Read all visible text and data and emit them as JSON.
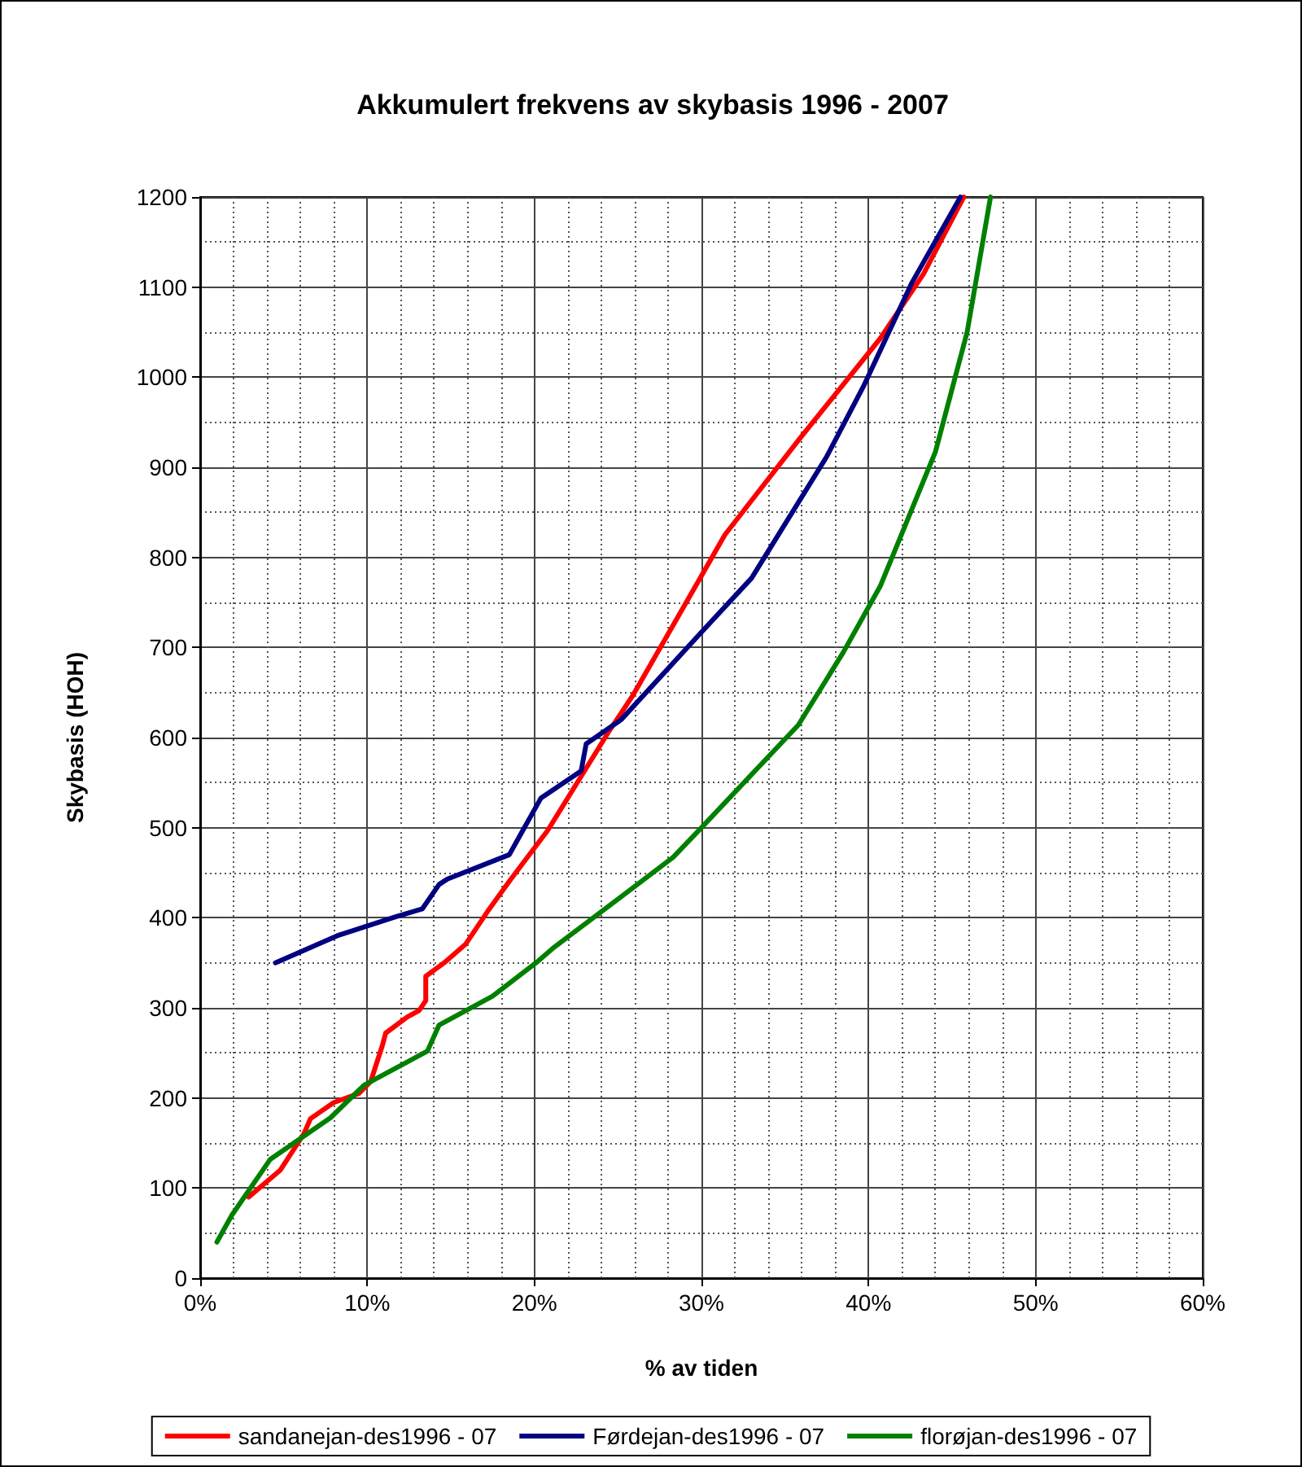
{
  "chart_data": {
    "type": "line",
    "title": "Akkumulert frekvens av skybasis 1996 - 2007",
    "xlabel": "% av tiden",
    "ylabel": "Skybasis (HOH)",
    "xlim": [
      0,
      60
    ],
    "xticks": [
      {
        "value": 0,
        "label": "0%"
      },
      {
        "value": 10,
        "label": "10%"
      },
      {
        "value": 20,
        "label": "20%"
      },
      {
        "value": 30,
        "label": "30%"
      },
      {
        "value": 40,
        "label": "40%"
      },
      {
        "value": 50,
        "label": "50%"
      },
      {
        "value": 60,
        "label": "60%"
      }
    ],
    "ylim": [
      0,
      1200
    ],
    "yticks": [
      0,
      100,
      200,
      300,
      400,
      500,
      600,
      700,
      800,
      900,
      1000,
      1100,
      1200
    ],
    "grid": true,
    "legend": "bottom",
    "marker": "none",
    "line_style": "solid",
    "series": [
      {
        "name": "sandanejan-des1996 - 07",
        "color": "#ff0000",
        "x": [
          2.9,
          4.8,
          6.2,
          6.6,
          8,
          9.5,
          10.2,
          10.9,
          11.1,
          12.4,
          13.1,
          13.5,
          13.5,
          14.6,
          15.9,
          17.2,
          18.6,
          20.8,
          24.4,
          25.9,
          29.8,
          31.4,
          35.8,
          40.7,
          43.3,
          45.7
        ],
        "values": [
          90,
          120,
          160,
          177,
          195,
          205,
          218,
          258,
          272,
          290,
          297,
          308,
          335,
          350,
          371,
          407,
          443,
          497,
          605,
          647,
          773,
          825,
          930,
          1043,
          1115,
          1200
        ]
      },
      {
        "name": "Førdejan-des1996 - 07",
        "color": "#000080",
        "x": [
          4.5,
          8.2,
          11.7,
          13.3,
          14.3,
          14.8,
          18.5,
          19.4,
          20.4,
          22.8,
          23.1,
          25.2,
          29.8,
          33,
          37.5,
          39.7,
          42.6,
          45.5
        ],
        "values": [
          350,
          380,
          401,
          410,
          437,
          443,
          470,
          500,
          533,
          563,
          593,
          620,
          713,
          777,
          912,
          990,
          1105,
          1200
        ]
      },
      {
        "name": "florøjan-des1996 - 07",
        "color": "#008000",
        "x": [
          1,
          1.9,
          4.2,
          7.8,
          9.8,
          10.7,
          13.6,
          14.3,
          17.5,
          20.1,
          21.1,
          28.3,
          30,
          35.8,
          38.5,
          40.7,
          44,
          45.9,
          47.3
        ],
        "values": [
          40,
          70,
          132,
          178,
          214,
          223,
          252,
          281,
          313,
          350,
          366,
          467,
          500,
          614,
          695,
          768,
          917,
          1050,
          1200
        ]
      }
    ]
  }
}
